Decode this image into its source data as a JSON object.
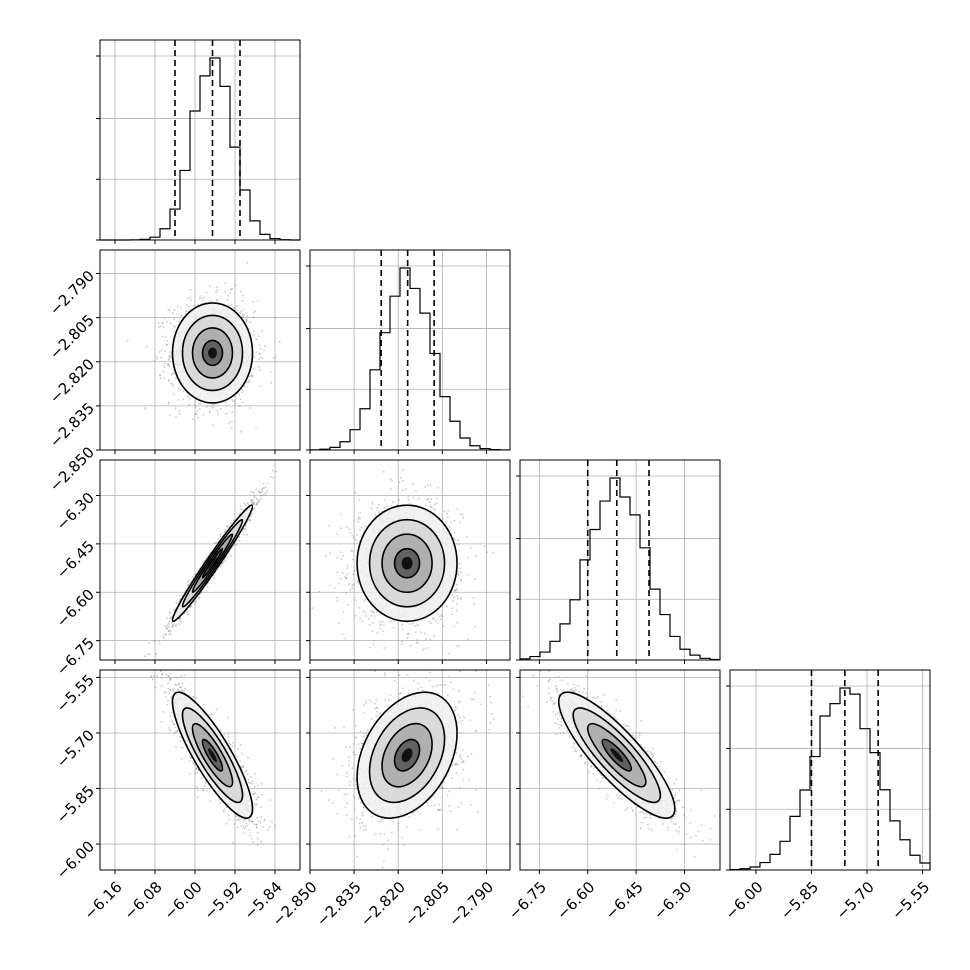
{
  "chart_data": {
    "type": "corner",
    "params": [
      {
        "mean": -5.965,
        "sd": 0.04,
        "range": [
          -6.19,
          -5.79
        ],
        "ticks": [
          -6.16,
          -6.08,
          -6.0,
          -5.92,
          -5.84
        ],
        "tick_labels": [
          "−6.16",
          "−6.08",
          "−6.00",
          "−5.92",
          "−5.84"
        ],
        "quantiles": [
          -6.04,
          -5.965,
          -5.91
        ]
      },
      {
        "mean": -2.817,
        "sd": 0.0085,
        "range": [
          -2.85,
          -2.782
        ],
        "ticks": [
          -2.85,
          -2.835,
          -2.82,
          -2.805,
          -2.79
        ],
        "tick_labels": [
          "−2.850",
          "−2.835",
          "−2.820",
          "−2.805",
          "−2.790"
        ],
        "quantiles": [
          -2.8258,
          -2.8168,
          -2.8078
        ]
      },
      {
        "mean": -6.51,
        "sd": 0.09,
        "range": [
          -6.81,
          -6.19
        ],
        "ticks": [
          -6.75,
          -6.6,
          -6.45,
          -6.3
        ],
        "tick_labels": [
          "−6.75",
          "−6.60",
          "−6.45",
          "−6.30"
        ],
        "quantiles": [
          -6.6,
          -6.51,
          -6.41
        ]
      },
      {
        "mean": -5.76,
        "sd": 0.085,
        "range": [
          -6.07,
          -5.53
        ],
        "ticks": [
          -6.0,
          -5.85,
          -5.7,
          -5.55
        ],
        "tick_labels": [
          "−6.00",
          "−5.85",
          "−5.70",
          "−5.55"
        ],
        "quantiles": [
          -5.85,
          -5.76,
          -5.67
        ]
      }
    ],
    "correlations": [
      {
        "i": 1,
        "j": 0,
        "rho": 0.0
      },
      {
        "i": 2,
        "j": 0,
        "rho": 0.98
      },
      {
        "i": 2,
        "j": 1,
        "rho": 0.0
      },
      {
        "i": 3,
        "j": 0,
        "rho": -0.85
      },
      {
        "i": 3,
        "j": 1,
        "rho": 0.35
      },
      {
        "i": 3,
        "j": 2,
        "rho": -0.85
      }
    ],
    "contour_levels_sigma": [
      0.5,
      1.0,
      1.5,
      2.0
    ],
    "grid": true,
    "samples_per_panel": 1500,
    "hist_bins": 20
  }
}
